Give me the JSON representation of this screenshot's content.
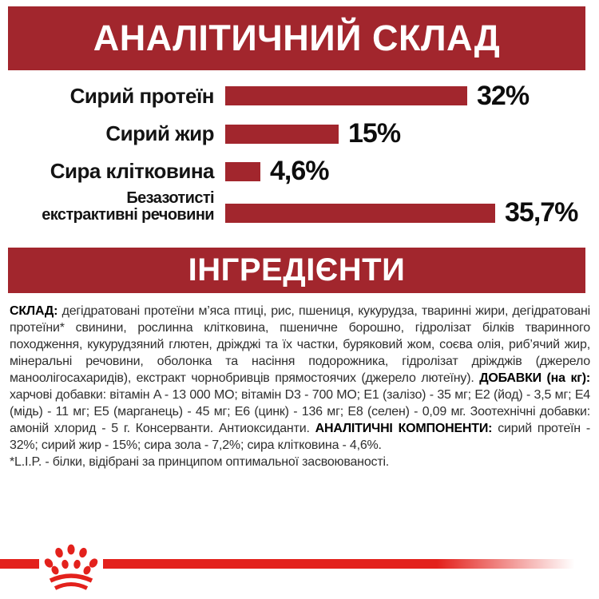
{
  "colors": {
    "brand_red": "#A2262D",
    "accent_red": "#E3211C",
    "text_black": "#141414",
    "background": "#FFFFFF"
  },
  "header1": {
    "title": "АНАЛІТИЧНИЙ СКЛАД"
  },
  "header2": {
    "title": "ІНГРЕДІЄНТИ"
  },
  "chart_data": {
    "type": "bar",
    "orientation": "horizontal",
    "title": "АНАЛІТИЧНИЙ СКЛАД",
    "unit": "%",
    "categories": [
      "Сирий протеїн",
      "Сирий жир",
      "Сира клітковина",
      "Безазотисті екстрактивні речовини"
    ],
    "label_lines": [
      [
        "Сирий протеїн"
      ],
      [
        "Сирий жир"
      ],
      [
        "Сира клітковина"
      ],
      [
        "Безазотисті",
        "екстрактивні речовини"
      ]
    ],
    "values": [
      32,
      15,
      4.6,
      35.7
    ],
    "value_labels": [
      "32%",
      "15%",
      "4,6%",
      "35,7%"
    ],
    "bar_color": "#A2262D",
    "xlim": [
      0,
      36
    ],
    "grid": false,
    "legend": "none"
  },
  "ingredients": {
    "segments": [
      {
        "text": "СКЛАД: ",
        "bold": true
      },
      {
        "text": "дегідратовані протеїни м’яса птиці, рис, пшениця, кукурудза, тваринні жири, дегідратовані протеїни* свинини, рослинна клітковина, пшеничне борошно, гідролізат білків тваринного походження, кукурудзяний глютен, дріжджі та їх частки, буряковий жом, соєва олія, риб’ячий жир, мінеральні речовини, оболонка та насіння подорожника, гідролізат дріжджів (джерело маноолігосахаридів), екстракт чорнобривців прямостоячих (джерело лютеїну). ",
        "bold": false
      },
      {
        "text": "ДОБАВКИ (на кг): ",
        "bold": true
      },
      {
        "text": "харчові добавки: вітамін A - 13 000 МО; вітамін D3 - 700 МО; E1 (залізо) - 35 мг; E2 (йод) - 3,5 мг; E4 (мідь) - 11 мг; E5 (марганець) - 45 мг; E6 (цинк) - 136 мг; E8 (селен) - 0,09 мг. Зоотехнічні добавки: амоній хлорид - 5 г. Консерванти. Антиоксиданти. ",
        "bold": false
      },
      {
        "text": "АНАЛІТИЧНІ КОМПОНЕНТИ: ",
        "bold": true
      },
      {
        "text": "сирий протеїн - 32%; сирий жир - 15%; сира зола - 7,2%; сира клітковина - 4,6%.",
        "bold": false
      }
    ],
    "footnote": "*L.I.P. - білки, відібрані за принципом оптимальної засвоюваності."
  },
  "footer": {
    "logo": "royal-canin-crown"
  }
}
